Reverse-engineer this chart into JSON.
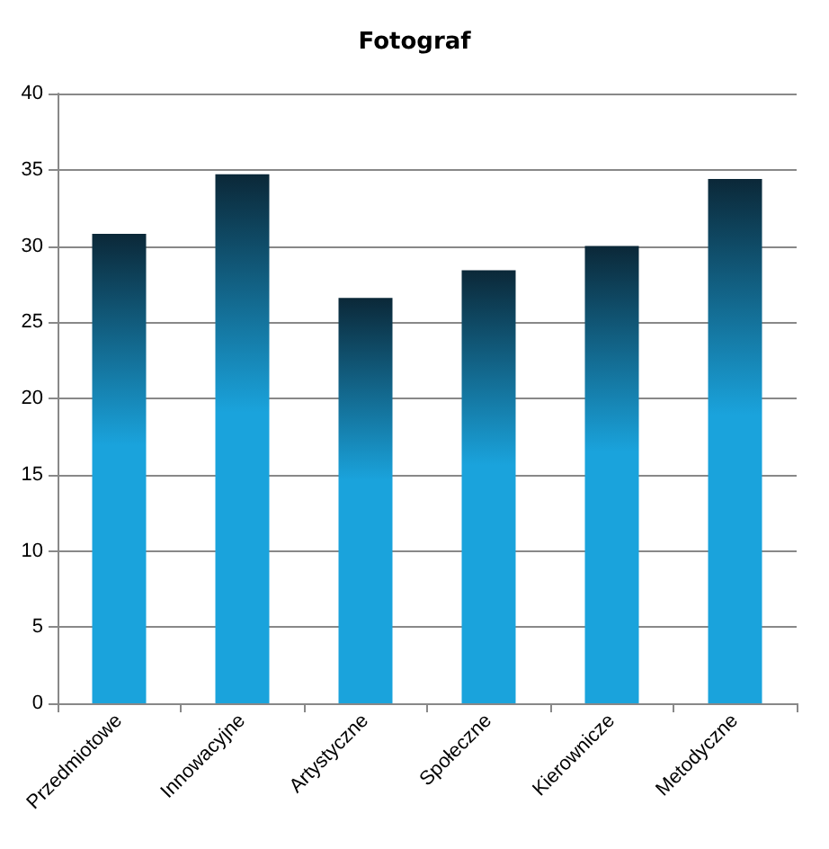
{
  "chart_data": {
    "type": "bar",
    "title": "Fotograf",
    "categories": [
      "Przedmiotowe",
      "Innowacyjne",
      "Artystyczne",
      "Społeczne",
      "Kierownicze",
      "Metodyczne"
    ],
    "values": [
      30.8,
      34.7,
      26.6,
      28.4,
      30.0,
      34.4
    ],
    "color": "#1aa3dc",
    "ylim": [
      0,
      40
    ],
    "yticks": [
      0,
      5,
      10,
      15,
      20,
      25,
      30,
      35,
      40
    ],
    "grid": "y"
  }
}
